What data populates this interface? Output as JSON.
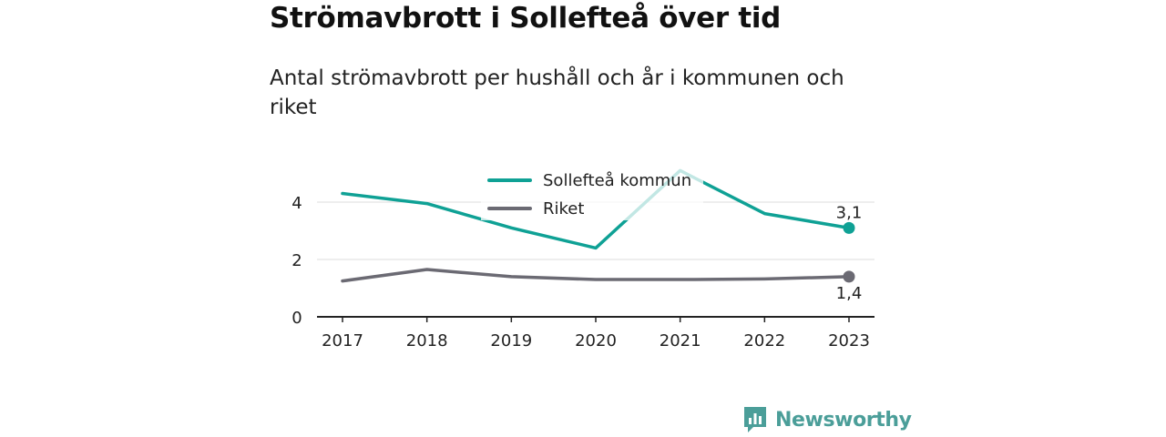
{
  "title": "Strömavbrott i Sollefteå över tid",
  "subtitle": "Antal strömavbrott per hushåll och år i kommunen och riket",
  "brand": {
    "name": "Newsworthy",
    "color": "#4b9e99"
  },
  "chart_data": {
    "type": "line",
    "title": "Strömavbrott i Sollefteå över tid",
    "subtitle": "Antal strömavbrott per hushåll och år i kommunen och riket",
    "x": [
      "2017",
      "2018",
      "2019",
      "2020",
      "2021",
      "2022",
      "2023"
    ],
    "yticks": [
      "0",
      "2",
      "4"
    ],
    "ylim": [
      0,
      5
    ],
    "grid": true,
    "legend_position": "top-center",
    "series": [
      {
        "name": "Sollefteå kommun",
        "color": "#0fa195",
        "values": [
          4.3,
          3.95,
          3.1,
          2.4,
          5.1,
          3.6,
          3.1
        ],
        "end_label": "3,1"
      },
      {
        "name": "Riket",
        "color": "#6b6a73",
        "values": [
          1.25,
          1.65,
          1.4,
          1.3,
          1.3,
          1.32,
          1.4
        ],
        "end_label": "1,4"
      }
    ]
  }
}
